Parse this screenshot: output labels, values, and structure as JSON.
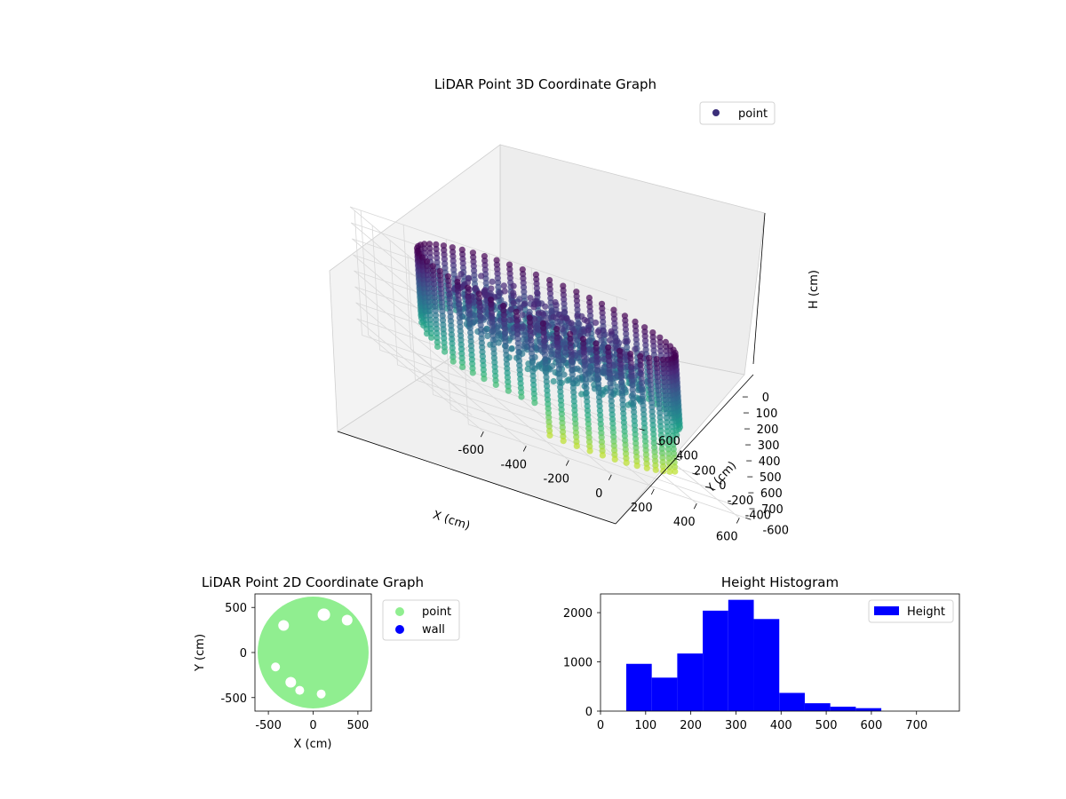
{
  "figure": {
    "background": "#ffffff"
  },
  "chart_data": [
    {
      "type": "scatter3d",
      "title": "LiDAR Point 3D Coordinate Graph",
      "xlabel": "X (cm)",
      "ylabel": "Y (cm)",
      "zlabel": "H (cm)",
      "xlim": [
        -650,
        650
      ],
      "ylim": [
        -650,
        650
      ],
      "zlim": [
        0,
        780
      ],
      "z_inverted": true,
      "x_ticks": [
        -600,
        -400,
        -200,
        0,
        200,
        400,
        600
      ],
      "y_ticks": [
        -600,
        -400,
        -200,
        0,
        200,
        400,
        600
      ],
      "z_ticks": [
        0,
        100,
        200,
        300,
        400,
        500,
        600,
        700
      ],
      "grid": true,
      "legend": {
        "placement": "top-right",
        "entries": [
          {
            "label": "point",
            "color": "#3b2f7a"
          }
        ]
      },
      "colormap": "viridis",
      "series": [
        {
          "name": "point",
          "shape": "cylindrical wall of points (radius ≈ 560 cm) plus inner floor cluster, colored by height",
          "wall_radius": 560,
          "h_range": [
            0,
            780
          ]
        }
      ]
    },
    {
      "type": "scatter",
      "title": "LiDAR Point 2D Coordinate Graph",
      "xlabel": "X (cm)",
      "ylabel": "Y (cm)",
      "xlim": [
        -650,
        650
      ],
      "ylim": [
        -650,
        650
      ],
      "x_ticks": [
        -500,
        0,
        500
      ],
      "y_ticks": [
        -500,
        0,
        500
      ],
      "legend": {
        "placement": "right",
        "entries": [
          {
            "label": "point",
            "color": "#90ee90"
          },
          {
            "label": "wall",
            "color": "#0000ff"
          }
        ]
      },
      "series": [
        {
          "name": "point",
          "color": "#90ee90",
          "shape": "filled disc",
          "center": [
            0,
            0
          ],
          "radius": 620
        }
      ]
    },
    {
      "type": "bar",
      "title": "Height Histogram",
      "xlabel": "",
      "ylabel": "",
      "xlim": [
        0,
        795
      ],
      "ylim": [
        0,
        2380
      ],
      "x_ticks": [
        0,
        100,
        200,
        300,
        400,
        500,
        600,
        700
      ],
      "y_ticks": [
        0,
        1000,
        2000
      ],
      "legend": {
        "placement": "top-right",
        "entries": [
          {
            "label": "Height",
            "color": "#0000ff"
          }
        ]
      },
      "bin_edges": [
        57,
        113.5,
        170,
        226.5,
        283,
        339.5,
        396,
        452.5,
        509,
        565.5,
        622
      ],
      "series": [
        {
          "name": "Height",
          "color": "#0000ff",
          "values": [
            960,
            680,
            1170,
            2040,
            2260,
            1870,
            370,
            160,
            90,
            60
          ]
        }
      ]
    }
  ]
}
